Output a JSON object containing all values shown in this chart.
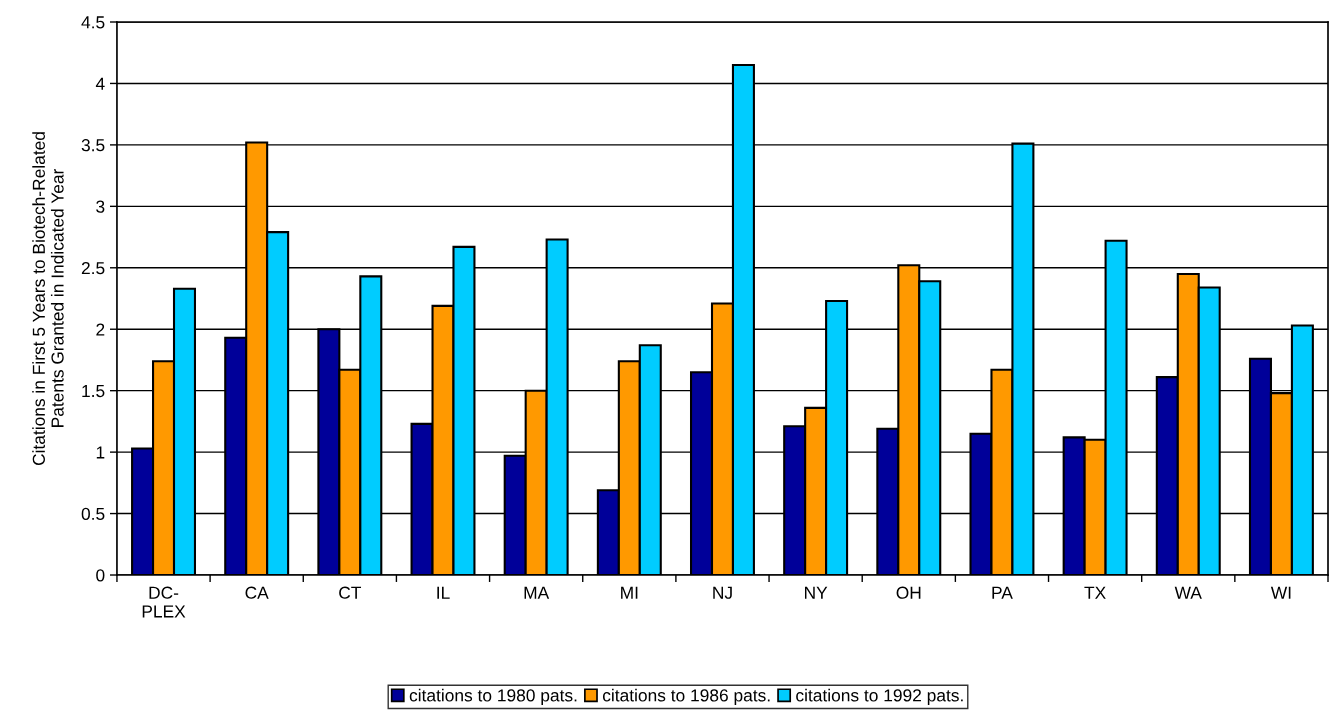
{
  "chart_data": {
    "type": "bar",
    "ylabel": "Citations in First 5 Years to Biotech-Related\nPatents Granted in Indicated Year",
    "categories": [
      "DC-\nPLEX",
      "CA",
      "CT",
      "IL",
      "MA",
      "MI",
      "NJ",
      "NY",
      "OH",
      "PA",
      "TX",
      "WA",
      "WI"
    ],
    "series": [
      {
        "name": "citations to 1980 pats.",
        "color": "#000099",
        "values": [
          1.03,
          1.93,
          2.0,
          1.23,
          0.97,
          0.69,
          1.65,
          1.21,
          1.19,
          1.15,
          1.12,
          1.61,
          1.76
        ]
      },
      {
        "name": "citations to 1986 pats.",
        "color": "#ff9900",
        "values": [
          1.74,
          3.52,
          1.67,
          2.19,
          1.5,
          1.74,
          2.21,
          1.36,
          2.52,
          1.67,
          1.1,
          2.45,
          1.48
        ]
      },
      {
        "name": "citations to 1992 pats.",
        "color": "#00ccff",
        "values": [
          2.33,
          2.79,
          2.43,
          2.67,
          2.73,
          1.87,
          4.15,
          2.23,
          2.39,
          3.51,
          2.72,
          2.34,
          2.03
        ]
      }
    ],
    "ylim": [
      0,
      4.5
    ],
    "yticks": [
      0,
      0.5,
      1,
      1.5,
      2,
      2.5,
      3,
      3.5,
      4,
      4.5
    ],
    "grid": "y",
    "legend": "bottom"
  }
}
